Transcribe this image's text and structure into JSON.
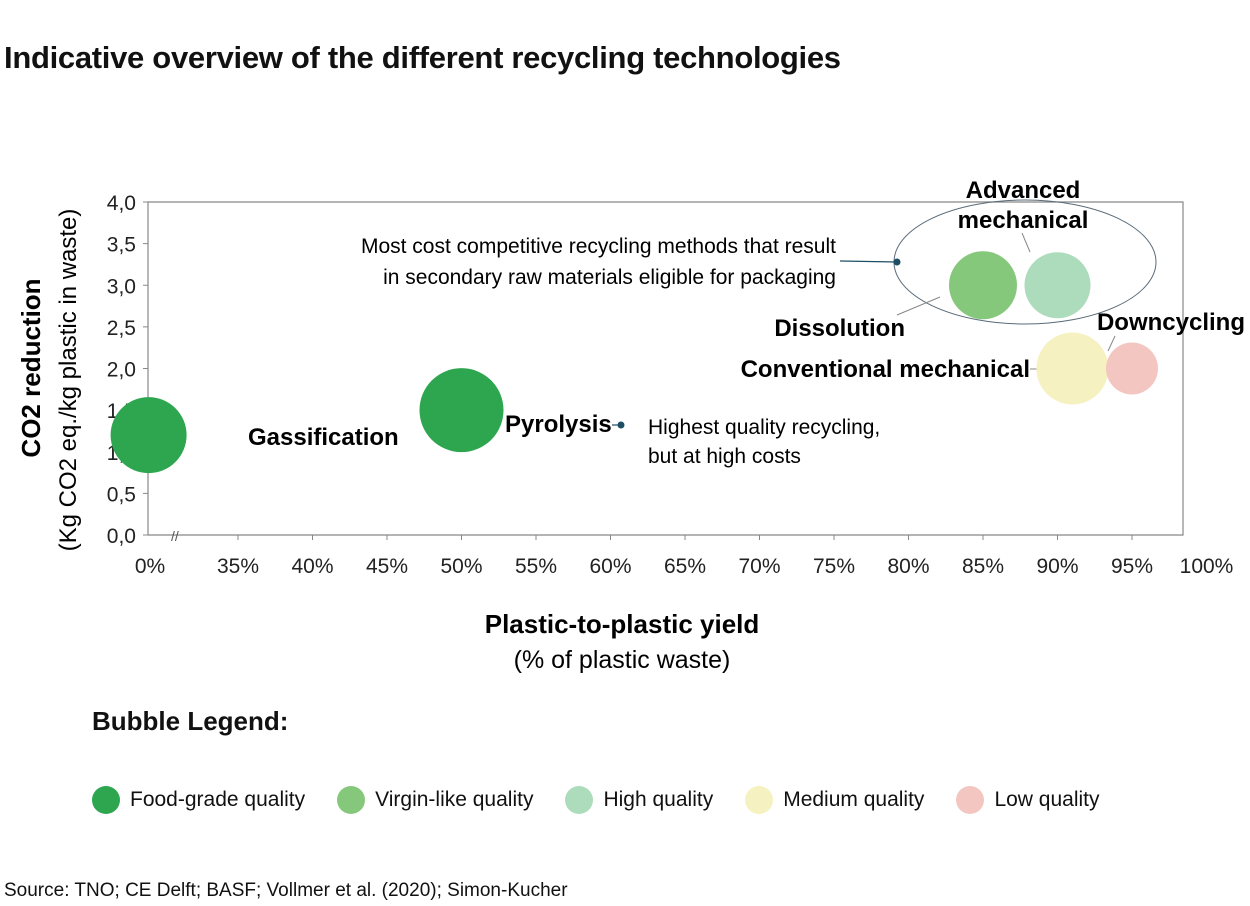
{
  "title": "Indicative overview of the different recycling technologies",
  "chart_data": {
    "type": "scatter",
    "subtype": "bubble",
    "xlabel": "Plastic-to-plastic yield",
    "xlabel_sub": "(% of plastic waste)",
    "ylabel_main": "CO2 reduction",
    "ylabel_sub": "(Kg CO2 eq./kg plastic in waste)",
    "xlim": [
      0,
      100
    ],
    "x_axis_break": true,
    "ylim": [
      0,
      4
    ],
    "x_ticks": [
      {
        "value": 0,
        "label": "0%"
      },
      {
        "value": 35,
        "label": "35%"
      },
      {
        "value": 40,
        "label": "40%"
      },
      {
        "value": 45,
        "label": "45%"
      },
      {
        "value": 50,
        "label": "50%"
      },
      {
        "value": 55,
        "label": "55%"
      },
      {
        "value": 60,
        "label": "60%"
      },
      {
        "value": 65,
        "label": "65%"
      },
      {
        "value": 70,
        "label": "70%"
      },
      {
        "value": 75,
        "label": "75%"
      },
      {
        "value": 80,
        "label": "80%"
      },
      {
        "value": 85,
        "label": "85%"
      },
      {
        "value": 90,
        "label": "90%"
      },
      {
        "value": 95,
        "label": "95%"
      },
      {
        "value": 100,
        "label": "100%"
      }
    ],
    "y_ticks": [
      {
        "value": 0,
        "label": "0,0"
      },
      {
        "value": 0.5,
        "label": "0,5"
      },
      {
        "value": 1,
        "label": "1,0"
      },
      {
        "value": 1.5,
        "label": "1,5"
      },
      {
        "value": 2,
        "label": "2,0"
      },
      {
        "value": 2.5,
        "label": "2,5"
      },
      {
        "value": 3,
        "label": "3,0"
      },
      {
        "value": 3.5,
        "label": "3,5"
      },
      {
        "value": 4,
        "label": "4,0"
      }
    ],
    "points": [
      {
        "name": "Gassification",
        "x": 29,
        "y": 1.2,
        "size": 38,
        "quality": "food"
      },
      {
        "name": "Pyrolysis",
        "x": 50,
        "y": 1.5,
        "size": 42,
        "quality": "food"
      },
      {
        "name": "Dissolution",
        "x": 85,
        "y": 3.0,
        "size": 34,
        "quality": "virgin"
      },
      {
        "name": "Advanced mechanical",
        "x": 90,
        "y": 3.0,
        "size": 33,
        "quality": "high"
      },
      {
        "name": "Conventional mechanical",
        "x": 91,
        "y": 2.0,
        "size": 36,
        "quality": "medium"
      },
      {
        "name": "Downcycling",
        "x": 95,
        "y": 2.0,
        "size": 26,
        "quality": "low"
      }
    ],
    "annotations": {
      "cost_competitive": [
        "Most cost competitive recycling methods that result",
        "in secondary raw materials eligible for packaging"
      ],
      "highest_quality": [
        "Highest quality recycling,",
        "but at high costs"
      ]
    },
    "legend_title": "Bubble Legend:",
    "legend": [
      {
        "key": "food",
        "label": "Food-grade quality",
        "color": "#2ea650"
      },
      {
        "key": "virgin",
        "label": "Virgin-like quality",
        "color": "#86c87b"
      },
      {
        "key": "high",
        "label": "High quality",
        "color": "#acdcbb"
      },
      {
        "key": "medium",
        "label": "Medium quality",
        "color": "#f5f1c0"
      },
      {
        "key": "low",
        "label": "Low quality",
        "color": "#f4c6c1"
      }
    ]
  },
  "source": "Source: TNO; CE Delft; BASF; Vollmer et al. (2020); Simon-Kucher"
}
